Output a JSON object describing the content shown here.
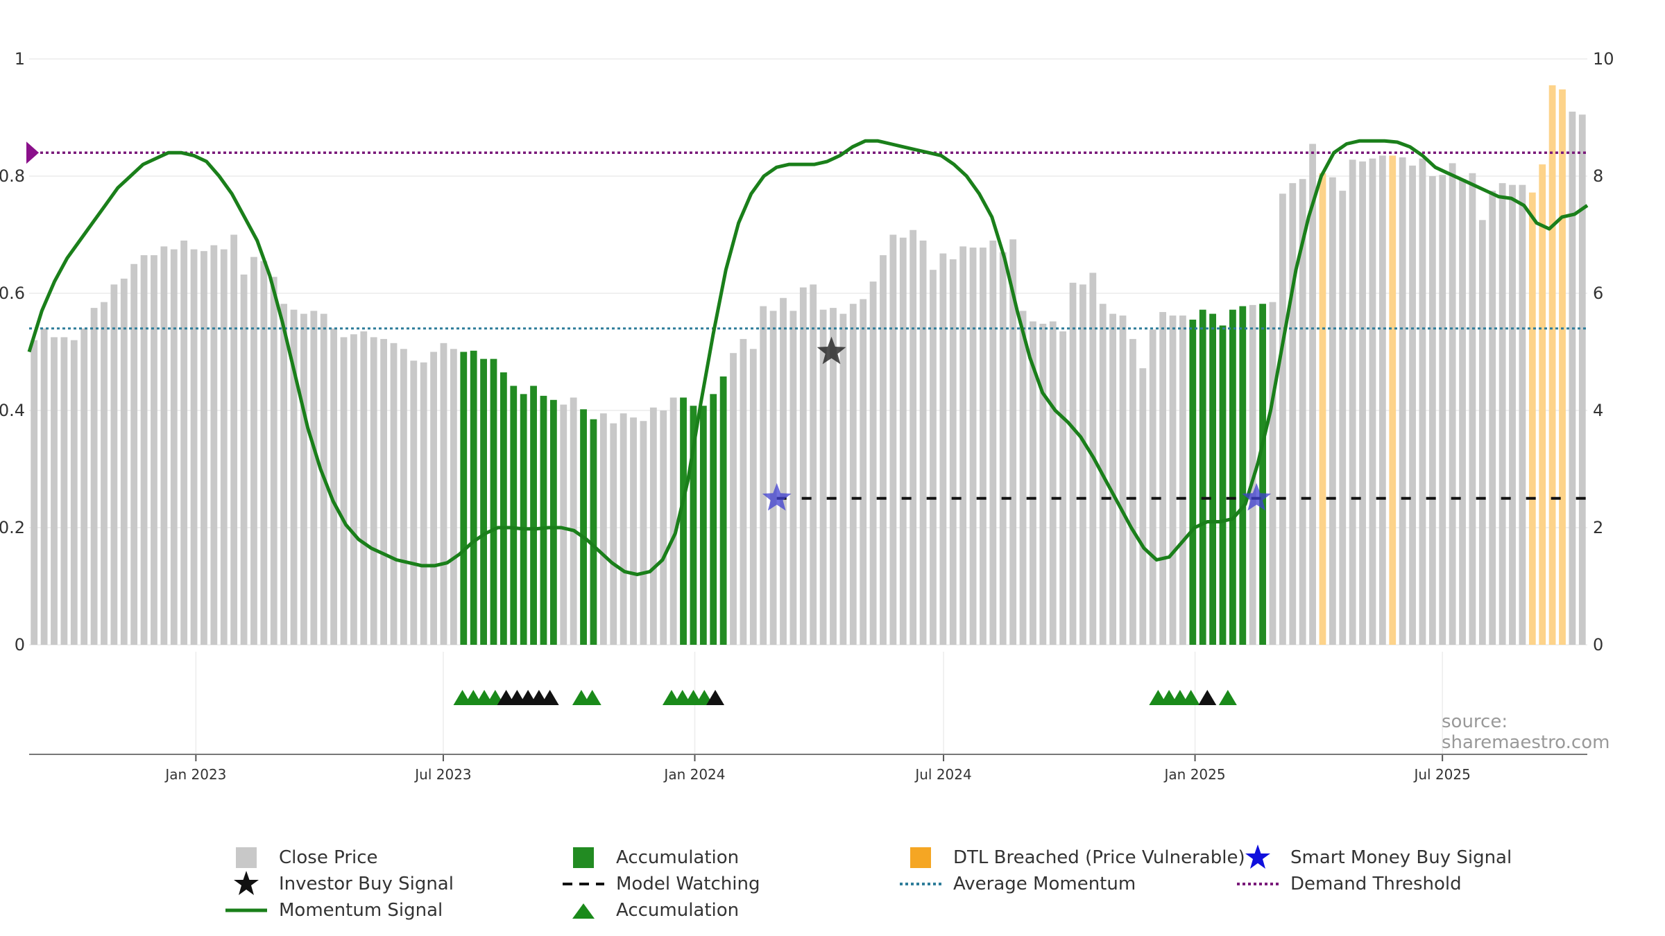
{
  "source_label": "source: sharemaestro.com",
  "colors": {
    "close": "#c8c8c8",
    "accumulation": "#228b22",
    "dtl": "#fdd38a",
    "momentum": "#1a7f1a",
    "avg_momentum": "#2e7d9a",
    "demand": "#7a1a7a",
    "smart_money": "#2020cc",
    "investor": "#111111",
    "watch": "#111111"
  },
  "chart_data": {
    "type": "bar",
    "title": "",
    "left_axis": {
      "range": [
        0,
        1
      ],
      "ticks": [
        "0",
        "0.2",
        "0.4",
        "0.6",
        "0.8",
        "1"
      ]
    },
    "right_axis": {
      "range": [
        0,
        10
      ],
      "ticks": [
        "0",
        "2",
        "4",
        "6",
        "8",
        "10"
      ]
    },
    "x_axis": {
      "start": "2022-09-01",
      "end": "2025-10-15",
      "ticks": [
        {
          "date": "2023-01-01",
          "label": "Jan 2023"
        },
        {
          "date": "2023-07-01",
          "label": "Jul 2023"
        },
        {
          "date": "2024-01-01",
          "label": "Jan 2024"
        },
        {
          "date": "2024-07-01",
          "label": "Jul 2024"
        },
        {
          "date": "2025-01-01",
          "label": "Jan 2025"
        },
        {
          "date": "2025-07-01",
          "label": "Jul 2025"
        }
      ]
    },
    "close_price": [
      5.2,
      5.4,
      5.25,
      5.25,
      5.2,
      5.4,
      5.75,
      5.85,
      6.15,
      6.25,
      6.5,
      6.65,
      6.65,
      6.8,
      6.75,
      6.9,
      6.75,
      6.72,
      6.82,
      6.75,
      7.0,
      6.32,
      6.62,
      6.55,
      6.28,
      5.82,
      5.72,
      5.65,
      5.7,
      5.65,
      5.4,
      5.25,
      5.3,
      5.35,
      5.25,
      5.22,
      5.15,
      5.05,
      4.85,
      4.82,
      5.0,
      5.15,
      5.05,
      5.0,
      5.02,
      4.88,
      4.88,
      4.65,
      4.42,
      4.28,
      4.42,
      4.25,
      4.18,
      4.1,
      4.22,
      4.02,
      3.85,
      3.95,
      3.78,
      3.95,
      3.88,
      3.82,
      4.05,
      4.0,
      4.22,
      4.22,
      4.08,
      4.08,
      4.28,
      4.58,
      4.98,
      5.22,
      5.05,
      5.78,
      5.7,
      5.92,
      5.7,
      6.1,
      6.15,
      5.72,
      5.75,
      5.65,
      5.82,
      5.9,
      6.2,
      6.65,
      7.0,
      6.95,
      7.08,
      6.9,
      6.4,
      6.68,
      6.58,
      6.8,
      6.78,
      6.78,
      6.9,
      6.7,
      6.92,
      5.7,
      5.52,
      5.48,
      5.52,
      5.35,
      6.18,
      6.15,
      6.35,
      5.82,
      5.65,
      5.62,
      5.22,
      4.72,
      5.38,
      5.68,
      5.62,
      5.62,
      5.55,
      5.72,
      5.65,
      5.45,
      5.72,
      5.78,
      5.8,
      5.82,
      5.85,
      7.7,
      7.88,
      7.95,
      8.55,
      8.05,
      7.98,
      7.75,
      8.28,
      8.25,
      8.3,
      8.35,
      8.35,
      8.32,
      8.18,
      8.3,
      8.0,
      8.02,
      8.22,
      7.95,
      8.05,
      7.25,
      7.75,
      7.88,
      7.85,
      7.85,
      7.72,
      8.2,
      9.55,
      9.48,
      9.1,
      9.05
    ],
    "accumulation_bars": [
      43,
      44,
      45,
      46,
      47,
      48,
      49,
      50,
      51,
      52,
      55,
      56,
      65,
      66,
      67,
      68,
      69,
      116,
      117,
      118,
      119,
      120,
      121,
      123
    ],
    "dtl_bars": [
      129,
      136,
      150,
      151,
      152,
      153
    ],
    "momentum": [
      0.5,
      0.57,
      0.62,
      0.66,
      0.69,
      0.72,
      0.75,
      0.78,
      0.8,
      0.82,
      0.83,
      0.84,
      0.84,
      0.835,
      0.825,
      0.8,
      0.77,
      0.73,
      0.69,
      0.63,
      0.55,
      0.46,
      0.37,
      0.3,
      0.245,
      0.205,
      0.18,
      0.165,
      0.155,
      0.145,
      0.14,
      0.135,
      0.135,
      0.14,
      0.155,
      0.175,
      0.19,
      0.2,
      0.2,
      0.198,
      0.198,
      0.2,
      0.2,
      0.195,
      0.18,
      0.16,
      0.14,
      0.125,
      0.12,
      0.125,
      0.145,
      0.19,
      0.28,
      0.41,
      0.53,
      0.64,
      0.72,
      0.77,
      0.8,
      0.815,
      0.82,
      0.82,
      0.82,
      0.825,
      0.835,
      0.85,
      0.86,
      0.86,
      0.855,
      0.85,
      0.845,
      0.84,
      0.835,
      0.82,
      0.8,
      0.77,
      0.73,
      0.66,
      0.57,
      0.49,
      0.43,
      0.4,
      0.38,
      0.355,
      0.32,
      0.28,
      0.24,
      0.2,
      0.165,
      0.145,
      0.15,
      0.175,
      0.2,
      0.21,
      0.21,
      0.215,
      0.24,
      0.31,
      0.4,
      0.52,
      0.64,
      0.73,
      0.8,
      0.84,
      0.855,
      0.86,
      0.86,
      0.86,
      0.858,
      0.85,
      0.835,
      0.815,
      0.805,
      0.795,
      0.785,
      0.775,
      0.765,
      0.762,
      0.75,
      0.72,
      0.71,
      0.73,
      0.735,
      0.75
    ],
    "average_momentum": 0.54,
    "demand_threshold": 0.84,
    "model_watching": {
      "from": "2024-03-01",
      "to": "2025-10-15",
      "level": 0.25
    },
    "smart_money_signals": [
      {
        "date": "2024-03-01",
        "value": 0.25
      },
      {
        "date": "2025-02-15",
        "value": 0.25
      }
    ],
    "investor_buy_signals": [
      {
        "date": "2024-04-10",
        "value": 0.5
      }
    ],
    "accumulation_triangles": {
      "green": [
        "2023-07-15",
        "2023-07-23",
        "2023-07-31",
        "2023-08-08",
        "2023-10-10",
        "2023-10-18",
        "2023-12-15",
        "2023-12-23",
        "2023-12-31",
        "2024-01-08",
        "2024-12-05",
        "2024-12-13",
        "2024-12-21",
        "2024-12-29",
        "2025-01-25"
      ],
      "black": [
        "2023-08-16",
        "2023-08-24",
        "2023-09-01",
        "2023-09-09",
        "2023-09-17",
        "2024-01-16",
        "2025-01-10"
      ]
    }
  },
  "legend": [
    {
      "label": "Close Price",
      "symbol": "close-square"
    },
    {
      "label": "Accumulation",
      "symbol": "accumulation-square"
    },
    {
      "label": "DTL Breached (Price Vulnerable)",
      "symbol": "dtl-square"
    },
    {
      "label": "Smart Money Buy Signal",
      "symbol": "smart-money-star"
    },
    {
      "label": "Investor Buy Signal",
      "symbol": "investor-star"
    },
    {
      "label": "Model Watching",
      "symbol": "dashed-line"
    },
    {
      "label": "Average Momentum",
      "symbol": "dotted-line-blue"
    },
    {
      "label": "Demand Threshold",
      "symbol": "dotted-line-purple"
    },
    {
      "label": "Momentum Signal",
      "symbol": "solid-line-green"
    },
    {
      "label": "Accumulation",
      "symbol": "green-triangle"
    }
  ]
}
